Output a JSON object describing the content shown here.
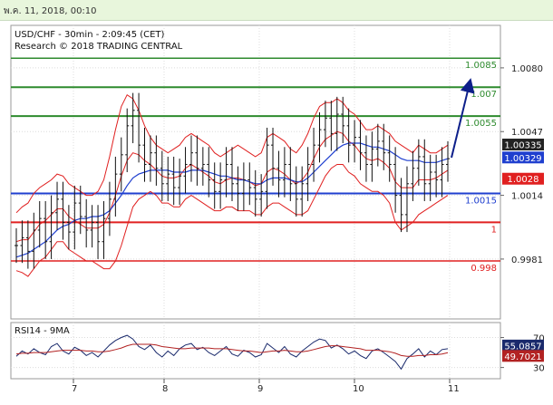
{
  "header": {
    "datetime": "พ.ค. 11, 2018, 00:10"
  },
  "chart_data": {
    "type": "line",
    "title": "USD/CHF - 30min - 2:09:45 (CET)",
    "subtitle": "Research © 2018 TRADING CENTRAL",
    "x_labels": [
      "7",
      "8",
      "9",
      "10",
      "11"
    ],
    "y_ticks": [
      "1.0080",
      "1.0047",
      "1.0014",
      "0.9981"
    ],
    "price_scale": {
      "max": 1.0102,
      "min": 0.995
    },
    "levels": [
      {
        "label": "1.0085",
        "value": 1.0085,
        "color": "#2e8b2e",
        "weight": 1.5
      },
      {
        "label": "1.007",
        "value": 1.007,
        "color": "#2e8b2e",
        "weight": 2
      },
      {
        "label": "1.0055",
        "value": 1.0055,
        "color": "#2e8b2e",
        "weight": 2
      },
      {
        "label": "1.0015",
        "value": 1.0015,
        "color": "#1f3fcf",
        "weight": 2
      },
      {
        "label": "1",
        "value": 1.0,
        "color": "#e02020",
        "weight": 2
      },
      {
        "label": "0.998",
        "value": 0.998,
        "color": "#e02020",
        "weight": 1.5
      }
    ],
    "price_badges": [
      {
        "label": "1.00335",
        "value": 1.00335,
        "color": "#222222"
      },
      {
        "label": "1.00329",
        "value": 1.00329,
        "color": "#1f3fcf"
      },
      {
        "label": "1.0028",
        "value": 1.0028,
        "color": "#e02020"
      }
    ],
    "series": [
      {
        "name": "price",
        "values": [
          0.9988,
          0.9992,
          0.9985,
          0.9996,
          1.0002,
          0.999,
          1.0005,
          1.0012,
          1.0,
          0.9995,
          1.001,
          1.0003,
          0.9996,
          1.0,
          0.999,
          1.0002,
          1.0012,
          1.0025,
          1.0035,
          1.005,
          1.0058,
          1.004,
          1.003,
          1.0036,
          1.0028,
          1.002,
          1.0025,
          1.0018,
          1.0024,
          1.003,
          1.0036,
          1.0028,
          1.003,
          1.0022,
          1.0016,
          1.0022,
          1.003,
          1.002,
          1.0015,
          1.0022,
          1.0018,
          1.0012,
          1.0016,
          1.004,
          1.0028,
          1.0022,
          1.003,
          1.002,
          1.0012,
          1.002,
          1.003,
          1.004,
          1.0048,
          1.0054,
          1.0046,
          1.0056,
          1.005,
          1.004,
          1.0044,
          1.0036,
          1.003,
          1.0038,
          1.0042,
          1.0036,
          1.003,
          1.0014,
          1.0004,
          1.002,
          1.0028,
          1.0034,
          1.002,
          1.0026,
          1.0022,
          1.003,
          1.0033
        ]
      },
      {
        "name": "upper-band",
        "values": [
          1.0005,
          1.0008,
          1.001,
          1.0015,
          1.0018,
          1.002,
          1.0022,
          1.0025,
          1.0024,
          1.002,
          1.0018,
          1.0016,
          1.0014,
          1.0014,
          1.0016,
          1.0022,
          1.0034,
          1.0048,
          1.006,
          1.0066,
          1.0064,
          1.0058,
          1.005,
          1.0044,
          1.004,
          1.0038,
          1.0036,
          1.0038,
          1.004,
          1.0044,
          1.0046,
          1.0044,
          1.0042,
          1.004,
          1.0036,
          1.0034,
          1.0036,
          1.0038,
          1.004,
          1.0038,
          1.0036,
          1.0034,
          1.0036,
          1.0044,
          1.0046,
          1.0044,
          1.0042,
          1.0038,
          1.0036,
          1.004,
          1.0046,
          1.0054,
          1.006,
          1.0062,
          1.0062,
          1.0064,
          1.0062,
          1.0058,
          1.0056,
          1.0052,
          1.0048,
          1.0048,
          1.005,
          1.0048,
          1.0046,
          1.0042,
          1.004,
          1.0038,
          1.0036,
          1.004,
          1.0038,
          1.0036,
          1.0036,
          1.0038,
          1.004
        ]
      },
      {
        "name": "lower-band",
        "values": [
          0.9975,
          0.9974,
          0.9972,
          0.9976,
          0.998,
          0.9982,
          0.9986,
          0.999,
          0.999,
          0.9986,
          0.9984,
          0.9982,
          0.998,
          0.998,
          0.9978,
          0.9976,
          0.9976,
          0.998,
          0.9988,
          0.9998,
          1.0008,
          1.0012,
          1.0014,
          1.0016,
          1.0014,
          1.001,
          1.001,
          1.0008,
          1.0008,
          1.0012,
          1.0014,
          1.0012,
          1.001,
          1.0008,
          1.0006,
          1.0006,
          1.0008,
          1.0008,
          1.0006,
          1.0006,
          1.0006,
          1.0004,
          1.0004,
          1.0008,
          1.001,
          1.001,
          1.0008,
          1.0006,
          1.0004,
          1.0004,
          1.0006,
          1.0012,
          1.0018,
          1.0024,
          1.0028,
          1.003,
          1.003,
          1.0026,
          1.0024,
          1.002,
          1.0018,
          1.0016,
          1.0016,
          1.0014,
          1.001,
          1.0,
          0.9996,
          0.9998,
          1.0,
          1.0004,
          1.0006,
          1.0008,
          1.001,
          1.0012,
          1.0014
        ]
      },
      {
        "name": "middle-band",
        "values": [
          0.999,
          0.9991,
          0.9991,
          0.9995,
          0.9999,
          1.0001,
          1.0004,
          1.0007,
          1.0007,
          1.0003,
          1.0001,
          0.9999,
          0.9997,
          0.9997,
          0.9997,
          0.9999,
          1.0005,
          1.0014,
          1.0024,
          1.0032,
          1.0036,
          1.0035,
          1.0032,
          1.003,
          1.0027,
          1.0024,
          1.0023,
          1.0023,
          1.0024,
          1.0028,
          1.003,
          1.0028,
          1.0026,
          1.0024,
          1.0021,
          1.002,
          1.0022,
          1.0023,
          1.0023,
          1.0022,
          1.0021,
          1.0019,
          1.002,
          1.0026,
          1.0028,
          1.0027,
          1.0025,
          1.0022,
          1.002,
          1.0022,
          1.0026,
          1.0033,
          1.0039,
          1.0043,
          1.0045,
          1.0047,
          1.0046,
          1.0042,
          1.004,
          1.0036,
          1.0033,
          1.0032,
          1.0033,
          1.0031,
          1.0028,
          1.0021,
          1.0018,
          1.0018,
          1.0018,
          1.0022,
          1.0022,
          1.0022,
          1.0023,
          1.0025,
          1.0027
        ]
      },
      {
        "name": "moving-average",
        "values": [
          0.9982,
          0.9983,
          0.9984,
          0.9986,
          0.9988,
          0.999,
          0.9993,
          0.9996,
          0.9998,
          0.9999,
          1.0001,
          1.0002,
          1.0002,
          1.0003,
          1.0003,
          1.0004,
          1.0006,
          1.001,
          1.0014,
          1.0019,
          1.0023,
          1.0025,
          1.0026,
          1.0027,
          1.0027,
          1.0027,
          1.0027,
          1.0026,
          1.0026,
          1.0026,
          1.0027,
          1.0027,
          1.0027,
          1.0026,
          1.0025,
          1.0024,
          1.0024,
          1.0023,
          1.0022,
          1.0022,
          1.0021,
          1.002,
          1.002,
          1.0022,
          1.0023,
          1.0023,
          1.0023,
          1.0022,
          1.0021,
          1.0021,
          1.0023,
          1.0026,
          1.0029,
          1.0032,
          1.0035,
          1.0038,
          1.004,
          1.0041,
          1.0041,
          1.0041,
          1.004,
          1.0039,
          1.0039,
          1.0038,
          1.0037,
          1.0035,
          1.0033,
          1.0032,
          1.0032,
          1.0032,
          1.0031,
          1.0031,
          1.0031,
          1.0032,
          1.0033
        ]
      },
      {
        "name": "forecast-arrow",
        "values": [
          1.00335,
          1.0072
        ]
      }
    ],
    "rsi": {
      "label": "RSI14 - 9MA",
      "y_ticks": [
        "70",
        "30"
      ],
      "scale": {
        "max": 90,
        "min": 15
      },
      "badges": [
        {
          "label": "55.0857",
          "value": 55.0857,
          "color": "#1a2a6c"
        },
        {
          "label": "49.7021",
          "value": 49.7021,
          "color": "#b22222"
        }
      ],
      "series": [
        {
          "name": "RSI14",
          "values": [
            45,
            52,
            48,
            55,
            50,
            47,
            58,
            62,
            52,
            48,
            57,
            53,
            46,
            50,
            44,
            52,
            60,
            66,
            70,
            73,
            68,
            58,
            54,
            60,
            50,
            44,
            52,
            46,
            55,
            60,
            62,
            54,
            57,
            50,
            46,
            52,
            58,
            48,
            45,
            53,
            50,
            44,
            47,
            62,
            56,
            50,
            58,
            48,
            44,
            52,
            58,
            64,
            68,
            66,
            56,
            60,
            55,
            48,
            52,
            46,
            42,
            52,
            55,
            50,
            44,
            38,
            28,
            42,
            48,
            55,
            44,
            52,
            47,
            54,
            55
          ]
        },
        {
          "name": "9MA",
          "values": [
            48,
            49,
            49,
            50,
            50,
            50,
            51,
            52,
            53,
            53,
            53,
            53,
            52,
            52,
            51,
            51,
            52,
            54,
            56,
            59,
            61,
            61,
            61,
            61,
            60,
            58,
            57,
            56,
            55,
            55,
            56,
            56,
            56,
            56,
            55,
            55,
            55,
            54,
            53,
            52,
            52,
            51,
            50,
            51,
            52,
            52,
            53,
            52,
            51,
            51,
            52,
            54,
            56,
            58,
            59,
            59,
            58,
            57,
            56,
            55,
            53,
            53,
            53,
            52,
            51,
            49,
            46,
            45,
            45,
            46,
            46,
            47,
            47,
            48,
            49.7
          ]
        }
      ]
    }
  }
}
